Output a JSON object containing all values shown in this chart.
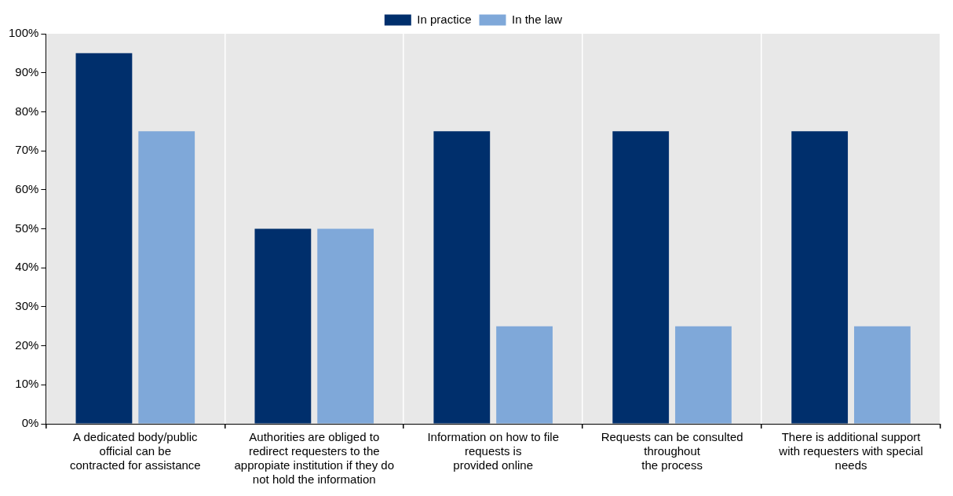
{
  "chart_data": {
    "type": "bar",
    "categories": [
      "A dedicated body/public\nofficial can be\ncontracted for assistance",
      "Authorities are obliged to\nredirect requesters to the\nappropiate institution if they do\nnot hold the information",
      "Information on how to file\nrequests is\nprovided online",
      "Requests can be consulted\nthroughout\nthe process",
      "There is additional support\nwith requesters with special\nneeds"
    ],
    "series": [
      {
        "name": "In practice",
        "color": "#002f6c",
        "values": [
          95,
          50,
          75,
          75,
          75
        ]
      },
      {
        "name": "In the law",
        "color": "#7fa8d9",
        "values": [
          75,
          50,
          25,
          25,
          25
        ]
      }
    ],
    "ylim": [
      0,
      100
    ],
    "yticks": [
      {
        "value": 0,
        "label": "0%"
      },
      {
        "value": 10,
        "label": "10%"
      },
      {
        "value": 20,
        "label": "20%"
      },
      {
        "value": 30,
        "label": "30%"
      },
      {
        "value": 40,
        "label": "40%"
      },
      {
        "value": 50,
        "label": "50%"
      },
      {
        "value": 60,
        "label": "60%"
      },
      {
        "value": 70,
        "label": "70%"
      },
      {
        "value": 80,
        "label": "80%"
      },
      {
        "value": 90,
        "label": "90%"
      },
      {
        "value": 100,
        "label": "100%"
      }
    ],
    "grid": "x",
    "legend": "top"
  }
}
